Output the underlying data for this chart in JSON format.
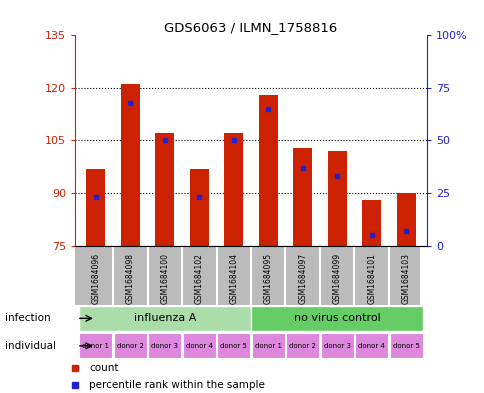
{
  "title": "GDS6063 / ILMN_1758816",
  "samples": [
    "GSM1684096",
    "GSM1684098",
    "GSM1684100",
    "GSM1684102",
    "GSM1684104",
    "GSM1684095",
    "GSM1684097",
    "GSM1684099",
    "GSM1684101",
    "GSM1684103"
  ],
  "counts": [
    97,
    121,
    107,
    97,
    107,
    118,
    103,
    102,
    88,
    90
  ],
  "percentile_ranks": [
    23,
    68,
    50,
    23,
    50,
    65,
    37,
    33,
    5,
    7
  ],
  "ylim_left": [
    75,
    135
  ],
  "yticks_left": [
    75,
    90,
    105,
    120,
    135
  ],
  "ylim_right": [
    0,
    100
  ],
  "yticks_right": [
    0,
    25,
    50,
    75,
    100
  ],
  "infection_labels": [
    "influenza A",
    "no virus control"
  ],
  "infection_colors": [
    "#aaddaa",
    "#66cc66"
  ],
  "donors": [
    "donor 1",
    "donor 2",
    "donor 3",
    "donor 4",
    "donor 5",
    "donor 1",
    "donor 2",
    "donor 3",
    "donor 4",
    "donor 5"
  ],
  "donor_color": "#dd88dd",
  "bar_color": "#cc2200",
  "blue_color": "#2222cc",
  "grid_color": "#000000",
  "axis_left_color": "#cc2200",
  "axis_right_color": "#2222cc",
  "sample_bg_color": "#bbbbbb",
  "bar_width": 0.55,
  "legend_red": "count",
  "legend_blue": "percentile rank within the sample"
}
